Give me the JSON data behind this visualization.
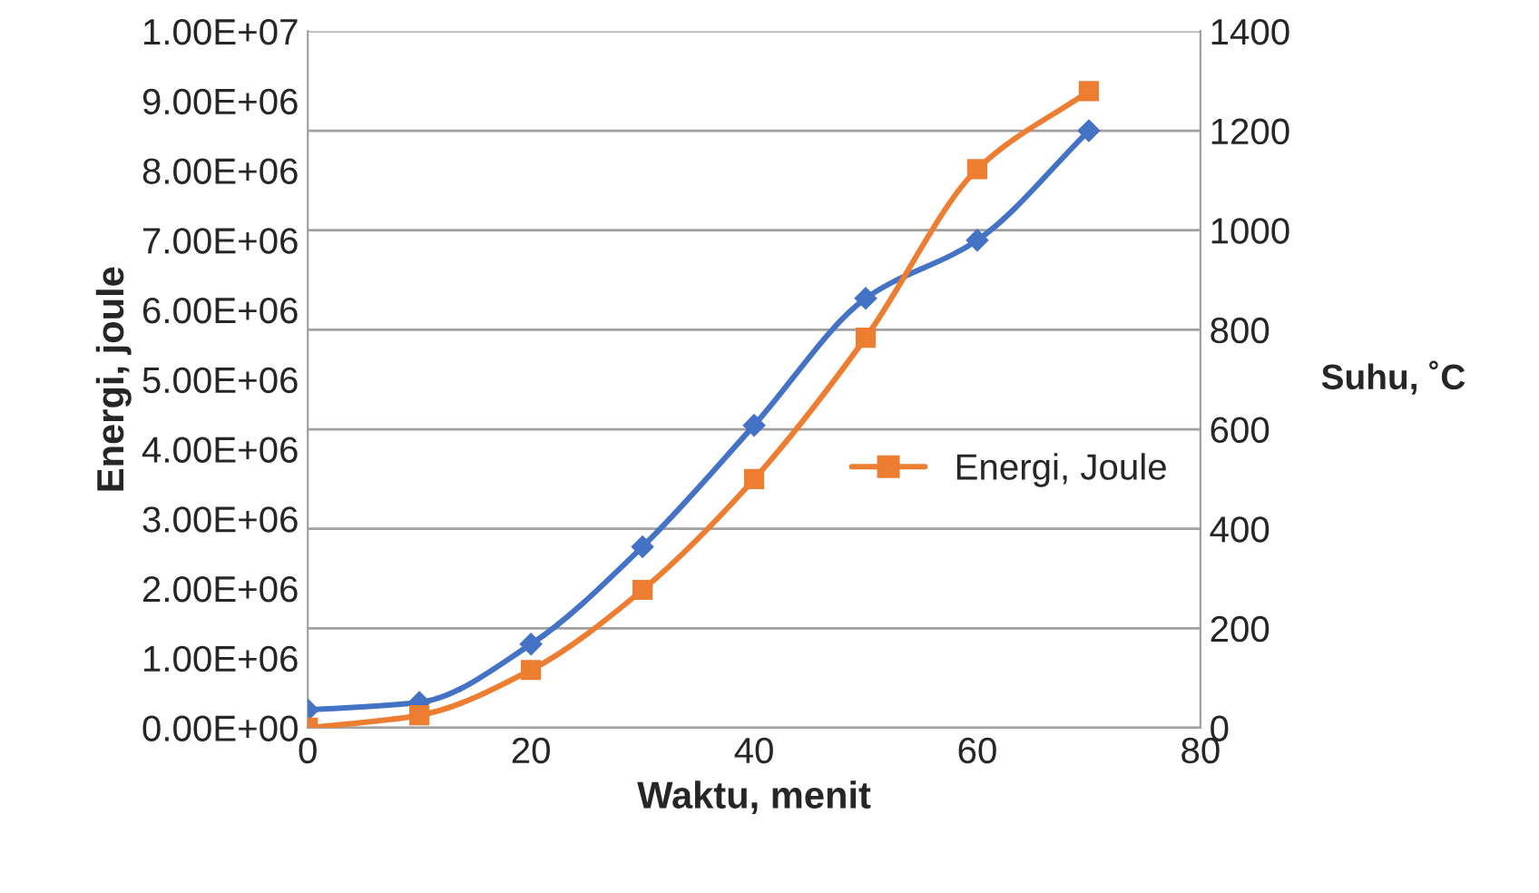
{
  "chart_data": {
    "type": "line",
    "xlabel": "Waktu, menit",
    "ylabel": "Energi, joule",
    "y2label": "Suhu, ˚C",
    "x": [
      0,
      10,
      20,
      30,
      40,
      50,
      60,
      70
    ],
    "series": [
      {
        "color": "#4472c4",
        "marker": "diamond",
        "axis": "y2",
        "values": [
          36,
          51,
          168,
          364,
          608,
          863,
          980,
          1200
        ]
      },
      {
        "name": "Energi, Joule",
        "color": "#ed7d31",
        "marker": "square",
        "values": [
          0,
          180000,
          830000,
          1980000,
          3570000,
          5600000,
          8020000,
          9140000
        ]
      }
    ],
    "xlim": [
      0,
      80
    ],
    "xticks": [
      0,
      20,
      40,
      60,
      80
    ],
    "ylim": [
      0,
      10000000
    ],
    "yticks": [
      {
        "value": 0,
        "label": "0.00E+00"
      },
      {
        "value": 1000000,
        "label": "1.00E+06"
      },
      {
        "value": 2000000,
        "label": "2.00E+06"
      },
      {
        "value": 3000000,
        "label": "3.00E+06"
      },
      {
        "value": 4000000,
        "label": "4.00E+06"
      },
      {
        "value": 5000000,
        "label": "5.00E+06"
      },
      {
        "value": 6000000,
        "label": "6.00E+06"
      },
      {
        "value": 7000000,
        "label": "7.00E+06"
      },
      {
        "value": 8000000,
        "label": "8.00E+06"
      },
      {
        "value": 9000000,
        "label": "9.00E+06"
      },
      {
        "value": 10000000,
        "label": "1.00E+07"
      }
    ],
    "y2lim": [
      0,
      1400
    ],
    "y2ticks": [
      0,
      200,
      400,
      600,
      800,
      1000,
      1200,
      1400
    ],
    "grid": "y",
    "legend": "center right",
    "line_style": "solid"
  }
}
